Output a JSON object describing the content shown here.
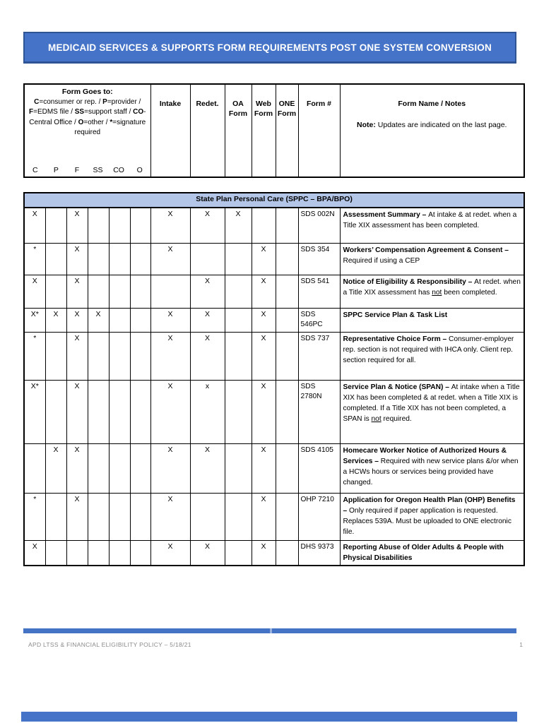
{
  "banner": {
    "title": "MEDICAID SERVICES & SUPPORTS FORM REQUIREMENTS POST ONE SYSTEM CONVERSION"
  },
  "header": {
    "form_goes_to": {
      "title": "Form Goes to:",
      "legend": [
        {
          "t": "C",
          "b": true
        },
        {
          "t": "=consumer or rep. / "
        },
        {
          "t": "P",
          "b": true
        },
        {
          "t": "=provider / "
        },
        {
          "t": "F",
          "b": true
        },
        {
          "t": "=EDMS file / "
        },
        {
          "t": "SS",
          "b": true
        },
        {
          "t": "=support staff / "
        },
        {
          "t": "CO",
          "b": true
        },
        {
          "t": "-Central Office / "
        },
        {
          "t": "O",
          "b": true
        },
        {
          "t": "=other / "
        },
        {
          "t": "*",
          "b": true
        },
        {
          "t": "=signature required"
        }
      ],
      "letters": [
        "C",
        "P",
        "F",
        "SS",
        "CO",
        "O"
      ]
    },
    "columns": {
      "intake": "Intake",
      "redet": "Redet.",
      "oa": "OA Form",
      "web": "Web Form",
      "one": "ONE Form",
      "form_number": "Form #",
      "form_name": "Form Name / Notes"
    },
    "note": [
      {
        "t": "Note: ",
        "b": true
      },
      {
        "t": "Updates are indicated on the last page."
      }
    ]
  },
  "section": {
    "title": "State Plan Personal Care (SPPC – BPA/BPO)"
  },
  "rows": [
    {
      "marks": {
        "c": "X",
        "p": "",
        "f": "X",
        "ss": "",
        "co": "",
        "o": "",
        "intake": "X",
        "redet": "X",
        "oa": "X",
        "web": "",
        "one": ""
      },
      "form_number": "SDS 002N",
      "name": [
        {
          "t": "Assessment Summary – ",
          "b": true
        },
        {
          "t": "At intake & at redet. when a Title XIX assessment has been completed."
        }
      ]
    },
    {
      "marks": {
        "c": "*",
        "p": "",
        "f": "X",
        "ss": "",
        "co": "",
        "o": "",
        "intake": "X",
        "redet": "",
        "oa": "",
        "web": "X",
        "one": ""
      },
      "form_number": "SDS 354",
      "name": [
        {
          "t": "Workers’ Compensation Agreement & Consent – ",
          "b": true
        },
        {
          "t": "Required if using a CEP"
        }
      ]
    },
    {
      "marks": {
        "c": "X",
        "p": "",
        "f": "X",
        "ss": "",
        "co": "",
        "o": "",
        "intake": "",
        "redet": "X",
        "oa": "",
        "web": "X",
        "one": ""
      },
      "form_number": "SDS 541",
      "name": [
        {
          "t": "Notice of Eligibility & Responsibility – ",
          "b": true
        },
        {
          "t": "At redet. when a Title XIX assessment has "
        },
        {
          "t": "not",
          "u": true
        },
        {
          "t": " been completed."
        }
      ]
    },
    {
      "marks": {
        "c": "X*",
        "p": "X",
        "f": "X",
        "ss": "X",
        "co": "",
        "o": "",
        "intake": "X",
        "redet": "X",
        "oa": "",
        "web": "X",
        "one": ""
      },
      "form_number": "SDS 546PC",
      "name": [
        {
          "t": "SPPC Service Plan & Task List",
          "b": true
        }
      ]
    },
    {
      "marks": {
        "c": "*",
        "p": "",
        "f": "X",
        "ss": "",
        "co": "",
        "o": "",
        "intake": "X",
        "redet": "X",
        "oa": "",
        "web": "X",
        "one": ""
      },
      "form_number": "SDS 737",
      "name": [
        {
          "t": "Representative Choice Form – ",
          "b": true
        },
        {
          "t": "Consumer-employer rep. section is not required with IHCA only. Client rep. section required for all."
        }
      ]
    },
    {
      "marks": {
        "c": "X*",
        "p": "",
        "f": "X",
        "ss": "",
        "co": "",
        "o": "",
        "intake": "X",
        "redet": "x",
        "oa": "",
        "web": "X",
        "one": ""
      },
      "form_number": "SDS 2780N",
      "name": [
        {
          "t": "Service Plan & Notice (SPAN) – ",
          "b": true
        },
        {
          "t": "At intake when a Title XIX has been completed & at redet. when a Title XIX is completed. If a Title XIX has not been completed, a SPAN is "
        },
        {
          "t": "not",
          "u": true
        },
        {
          "t": " required."
        }
      ]
    },
    {
      "marks": {
        "c": "",
        "p": "X",
        "f": "X",
        "ss": "",
        "co": "",
        "o": "",
        "intake": "X",
        "redet": "X",
        "oa": "",
        "web": "X",
        "one": ""
      },
      "form_number": "SDS 4105",
      "name": [
        {
          "t": "Homecare Worker Notice of Authorized Hours & Services – ",
          "b": true
        },
        {
          "t": "Required with new service plans &/or when a HCWs hours or services being provided have changed."
        }
      ]
    },
    {
      "marks": {
        "c": "*",
        "p": "",
        "f": "X",
        "ss": "",
        "co": "",
        "o": "",
        "intake": "X",
        "redet": "",
        "oa": "",
        "web": "X",
        "one": ""
      },
      "form_number": "OHP 7210",
      "name": [
        {
          "t": "Application for Oregon Health Plan (OHP) Benefits – ",
          "b": true
        },
        {
          "t": "Only required if paper application is requested. Replaces 539A. Must be uploaded to ONE electronic file."
        }
      ]
    },
    {
      "marks": {
        "c": "X",
        "p": "",
        "f": "",
        "ss": "",
        "co": "",
        "o": "",
        "intake": "X",
        "redet": "X",
        "oa": "",
        "web": "X",
        "one": ""
      },
      "form_number": "DHS 9373",
      "name": [
        {
          "t": "Reporting Abuse of Older Adults & People with Physical Disabilities",
          "b": true
        }
      ]
    }
  ],
  "footer": {
    "left": "APD LTSS & FINANCIAL ELIGIBILITY POLICY – 5/18/21",
    "page_number": "1"
  },
  "colors": {
    "banner_fill": "#4573C7",
    "banner_border": "#2F5496",
    "section_fill": "#B4C6E7",
    "footer_bar": "#4472C4"
  }
}
